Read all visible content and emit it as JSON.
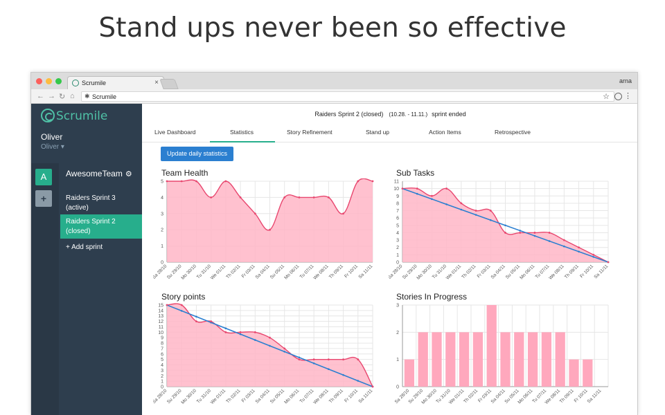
{
  "headline": "Stand ups never been so effective",
  "browser": {
    "tab_title": "Scrumile",
    "tab_close": "×",
    "url": "Scrumile",
    "top_right_user": "arna"
  },
  "sidebar": {
    "logo": "Scrumile",
    "user_name": "Oliver",
    "user_sub": "Oliver ▾",
    "team_initial": "A",
    "team_add": "+",
    "team_name": "AwesomeTeam",
    "sprints": [
      {
        "line1": "Raiders Sprint 3",
        "line2": "(active)"
      },
      {
        "line1": "Raiders Sprint 2",
        "line2": "(closed)"
      }
    ],
    "add_sprint": "+ Add sprint"
  },
  "header": {
    "sprint_name": "Raiders Sprint 2 (closed)",
    "dates": "(10.28. - 11.11.)",
    "status": "sprint ended"
  },
  "tabs": [
    "Live Dashboard",
    "Statistics",
    "Story Refinement",
    "Stand up",
    "Action Items",
    "Retrospective"
  ],
  "update_button": "Update daily statistics",
  "colors": {
    "accent": "#27ae8c",
    "line": "#e8476f",
    "fill": "#ffb6c7",
    "trend": "#2b7fd0",
    "bar": "#ffa8bd"
  },
  "chart_data": [
    {
      "type": "area",
      "title": "Team Health",
      "categories": [
        "Sa 28/10",
        "Su 29/10",
        "Mo 30/10",
        "Tu 31/10",
        "We 01/11",
        "Th 02/11",
        "Fr 03/11",
        "Sa 04/11",
        "Su 05/11",
        "Mo 06/11",
        "Tu 07/11",
        "We 08/11",
        "Th 09/11",
        "Fr 10/11",
        "Sa 11/11"
      ],
      "values": [
        5,
        5,
        5,
        4,
        5,
        4,
        3,
        2,
        4,
        4,
        4,
        4,
        3,
        5,
        5
      ],
      "ylim": [
        0,
        5
      ],
      "yticks": [
        0,
        1,
        2,
        3,
        4,
        5
      ]
    },
    {
      "type": "area",
      "title": "Sub Tasks",
      "categories": [
        "Sa 28/10",
        "Su 29/10",
        "Mo 30/10",
        "Tu 31/10",
        "We 01/11",
        "Th 02/11",
        "Fr 03/11",
        "Sa 04/11",
        "Su 05/11",
        "Mo 06/11",
        "Tu 07/11",
        "We 08/11",
        "Th 09/11",
        "Fr 10/11",
        "Sa 11/11"
      ],
      "values": [
        10,
        10,
        9,
        10,
        8,
        7,
        7,
        4,
        4,
        4,
        4,
        3,
        2,
        1,
        0
      ],
      "trend": [
        10,
        0
      ],
      "ylim": [
        0,
        11
      ],
      "yticks": [
        0,
        1,
        2,
        3,
        4,
        5,
        6,
        7,
        8,
        9,
        10,
        11
      ]
    },
    {
      "type": "area",
      "title": "Story points",
      "categories": [
        "Sa 28/10",
        "Su 29/10",
        "Mo 30/10",
        "Tu 31/10",
        "We 01/11",
        "Th 02/11",
        "Fr 03/11",
        "Sa 04/11",
        "Su 05/11",
        "Mo 06/11",
        "Tu 07/11",
        "We 08/11",
        "Th 09/11",
        "Fr 10/11",
        "Sa 11/11"
      ],
      "values": [
        15,
        15,
        12,
        12,
        10,
        10,
        10,
        9,
        7,
        5,
        5,
        5,
        5,
        5,
        0
      ],
      "trend": [
        15,
        0
      ],
      "ylim": [
        0,
        15
      ],
      "yticks": [
        0,
        1,
        2,
        3,
        4,
        5,
        6,
        7,
        8,
        9,
        10,
        11,
        12,
        13,
        14,
        15
      ]
    },
    {
      "type": "bar",
      "title": "Stories In Progress",
      "categories": [
        "Sa 28/10",
        "Su 29/10",
        "Mo 30/10",
        "Tu 31/10",
        "We 01/11",
        "Th 02/11",
        "Fr 03/11",
        "Sa 04/11",
        "Su 05/11",
        "Mo 06/11",
        "Tu 07/11",
        "We 08/11",
        "Th 09/11",
        "Fr 10/11",
        "Sa 11/11"
      ],
      "values": [
        1,
        2,
        2,
        2,
        2,
        2,
        3,
        2,
        2,
        2,
        2,
        2,
        1,
        1,
        0
      ],
      "ylim": [
        0,
        3
      ],
      "yticks": [
        0,
        1,
        2,
        3
      ]
    }
  ]
}
